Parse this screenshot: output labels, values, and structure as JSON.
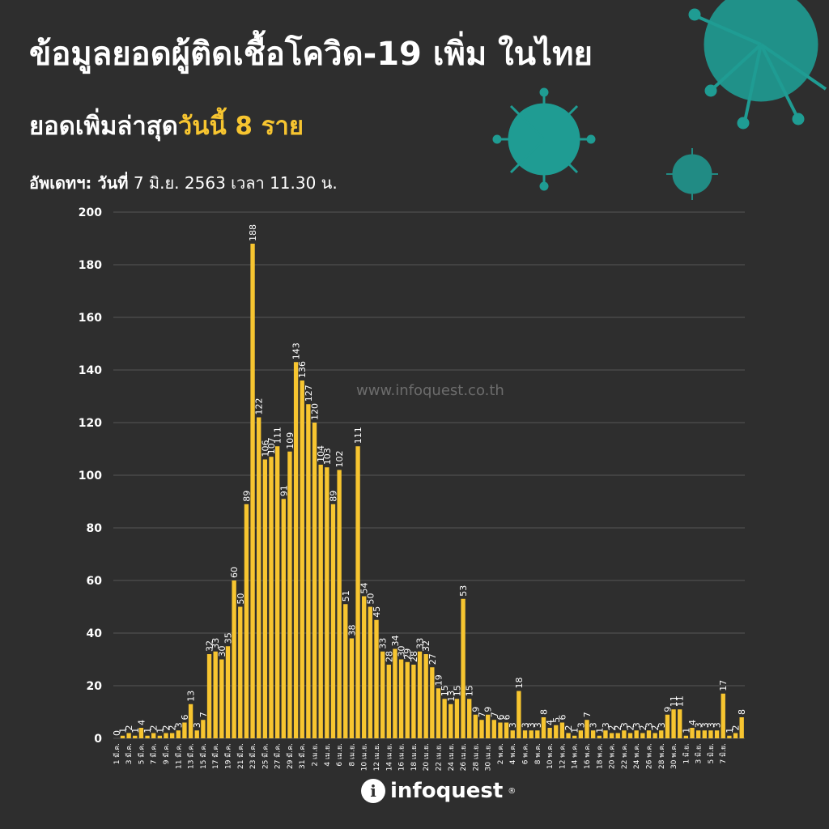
{
  "header": {
    "title": "ข้อมูลยอดผู้ติดเชื้อโควิด-19 เพิ่ม ในไทย",
    "subtitle_prefix": "ยอดเพิ่มล่าสุด",
    "subtitle_highlight": "วันนี้  8 ราย",
    "updated_label": "อัพเดทฯ: วันที่",
    "updated_value": " 7 มิ.ย. 2563 เวลา 11.30 น."
  },
  "watermark": "www.infoquest.co.th",
  "logo": {
    "mark": "i",
    "text": "infoquest",
    "trademark": "®"
  },
  "colors": {
    "background": "#2e2e2e",
    "bar": "#f7c530",
    "grid": "#555555",
    "text": "#ffffff",
    "accent": "#f7c530",
    "virus": "#1f9c93"
  },
  "chart_data": {
    "type": "bar",
    "ylim": [
      0,
      200
    ],
    "yticks": [
      0,
      20,
      40,
      60,
      80,
      100,
      120,
      140,
      160,
      180,
      200
    ],
    "grid": true,
    "xtick_labels": [
      "1 มี.ค.",
      "3 มี.ค.",
      "5 มี.ค.",
      "7 มี.ค.",
      "9 มี.ค.",
      "11 มี.ค.",
      "13 มี.ค.",
      "15 มี.ค.",
      "17 มี.ค.",
      "19 มี.ค.",
      "21 มี.ค.",
      "23 มี.ค.",
      "25 มี.ค.",
      "27 มี.ค.",
      "29 มี.ค.",
      "31 มี.ค.",
      "2 เม.ย.",
      "4 เม.ย.",
      "6 เม.ย.",
      "8 เม.ย.",
      "10 เม.ย.",
      "12 เม.ย.",
      "14 เม.ย.",
      "16 เม.ย.",
      "18 เม.ย.",
      "20 เม.ย.",
      "22 เม.ย.",
      "24 เม.ย.",
      "26 เม.ย.",
      "28 เม.ย.",
      "30 เม.ย.",
      "2 พ.ค.",
      "4 พ.ค.",
      "6 พ.ค.",
      "8 พ.ค.",
      "10 พ.ค.",
      "12 พ.ค.",
      "14 พ.ค.",
      "16 พ.ค.",
      "18 พ.ค.",
      "20 พ.ค.",
      "22 พ.ค.",
      "24 พ.ค.",
      "26 พ.ค.",
      "28 พ.ค.",
      "30 พ.ค.",
      "1 มิ.ย.",
      "3 มิ.ย.",
      "5 มิ.ย.",
      "7 มิ.ย."
    ],
    "values": [
      0,
      1,
      2,
      1,
      4,
      1,
      2,
      1,
      2,
      2,
      3,
      6,
      13,
      3,
      7,
      32,
      33,
      30,
      35,
      60,
      50,
      89,
      188,
      122,
      106,
      107,
      111,
      91,
      109,
      143,
      136,
      127,
      120,
      104,
      103,
      89,
      102,
      51,
      38,
      111,
      54,
      50,
      45,
      33,
      28,
      34,
      30,
      29,
      28,
      33,
      32,
      27,
      19,
      15,
      13,
      15,
      53,
      15,
      9,
      7,
      9,
      7,
      6,
      6,
      3,
      18,
      3,
      3,
      3,
      8,
      4,
      5,
      6,
      2,
      1,
      3,
      7,
      3,
      1,
      3,
      2,
      2,
      3,
      2,
      3,
      2,
      3,
      2,
      3,
      9,
      11,
      11,
      1,
      4,
      3,
      3,
      3,
      3,
      17,
      1,
      2,
      8
    ],
    "labels": [
      "0",
      "1",
      "2",
      "1",
      "4",
      "1",
      "2",
      "1",
      "2",
      "2",
      "3",
      "6",
      "13",
      "3",
      "7",
      "32",
      "33",
      "30",
      "35",
      "60",
      "50",
      "89",
      "188",
      "122",
      "106",
      "107",
      "111",
      "91",
      "109",
      "143",
      "136",
      "127",
      "120",
      "104",
      "103",
      "89",
      "102",
      "51",
      "38",
      "111",
      "54",
      "50",
      "45",
      "33",
      "28",
      "34",
      "30",
      "29",
      "28",
      "33",
      "32",
      "27",
      "19",
      "15",
      "13",
      "15",
      "53",
      "15",
      "9",
      "7",
      "9",
      "7",
      "6",
      "6",
      "3",
      "18",
      "3",
      "3",
      "3",
      "8",
      "4",
      "5",
      "6",
      "2",
      "1",
      "3",
      "7",
      "3",
      "1",
      "3",
      "2",
      "2",
      "3",
      "2",
      "3",
      "2",
      "3",
      "2",
      "3",
      "9",
      "11",
      "11",
      "1",
      "4",
      "3",
      "3",
      "3",
      "3",
      "17",
      "1",
      "2",
      "8"
    ]
  }
}
